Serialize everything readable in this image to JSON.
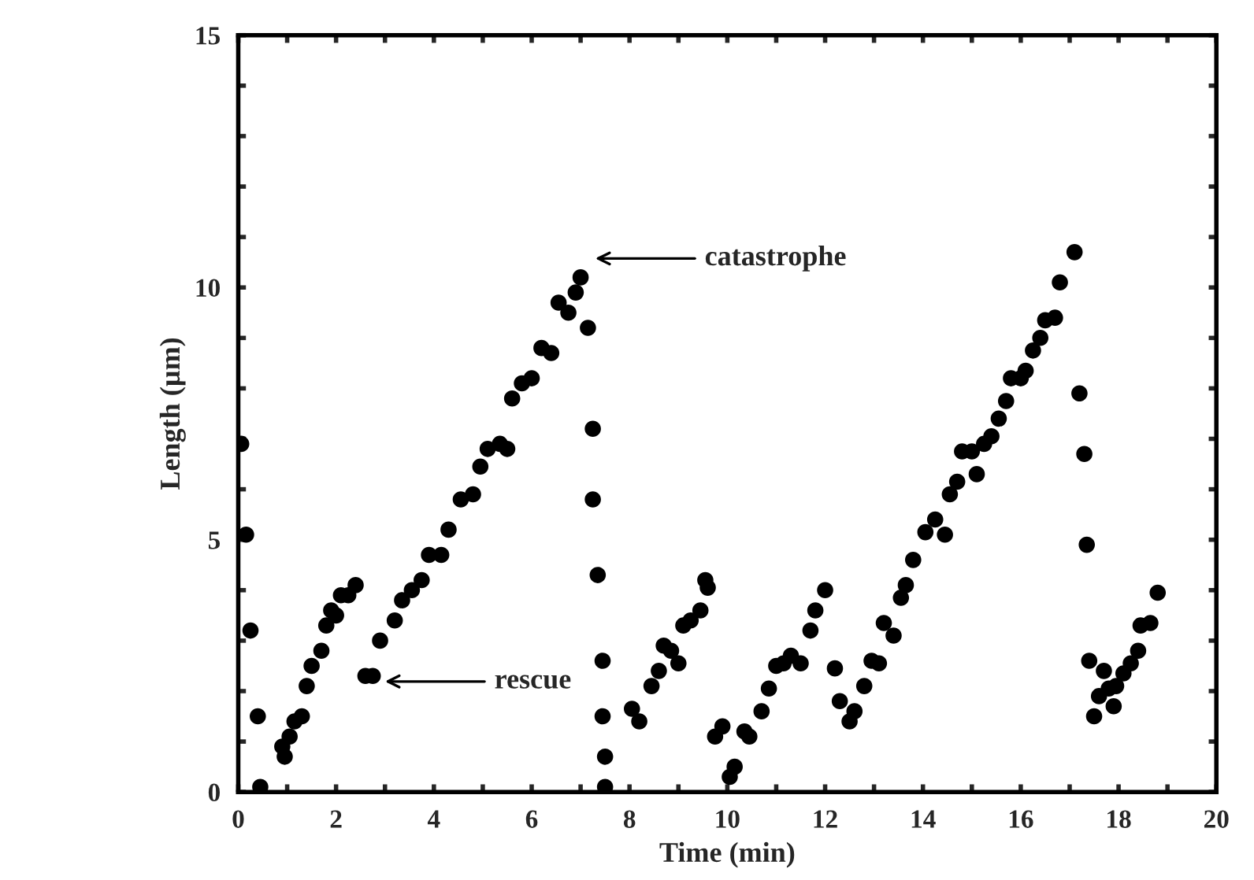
{
  "chart_data": {
    "type": "scatter",
    "xlabel": "Time (min)",
    "ylabel": "Length (µm)",
    "xlim": [
      0,
      20
    ],
    "ylim": [
      0,
      15
    ],
    "xticks": [
      0,
      {
        "value": 1,
        "label": null
      },
      2,
      {
        "value": 3,
        "label": null
      },
      4,
      {
        "value": 5,
        "label": null
      },
      6,
      {
        "value": 7,
        "label": null
      },
      8,
      {
        "value": 9,
        "label": null
      },
      10,
      {
        "value": 11,
        "label": null
      },
      12,
      {
        "value": 13,
        "label": null
      },
      14,
      {
        "value": 15,
        "label": null
      },
      16,
      {
        "value": 17,
        "label": null
      },
      18,
      {
        "value": 19,
        "label": null
      },
      20
    ],
    "yticks": [
      0,
      {
        "value": 1,
        "label": null
      },
      {
        "value": 2,
        "label": null
      },
      {
        "value": 3,
        "label": null
      },
      {
        "value": 4,
        "label": null
      },
      5,
      {
        "value": 6,
        "label": null
      },
      {
        "value": 7,
        "label": null
      },
      {
        "value": 8,
        "label": null
      },
      {
        "value": 9,
        "label": null
      },
      10,
      {
        "value": 11,
        "label": null
      },
      {
        "value": 12,
        "label": null
      },
      {
        "value": 13,
        "label": null
      },
      {
        "value": 14,
        "label": null
      },
      15
    ],
    "marker": "circle",
    "grid": false,
    "legend": false,
    "series": [
      {
        "color": "#000000",
        "x": [
          0.06,
          0.16,
          0.25,
          0.4,
          0.45,
          0.9,
          0.95,
          1.05,
          1.15,
          1.3,
          1.4,
          1.5,
          1.7,
          1.8,
          1.9,
          2.0,
          2.1,
          2.25,
          2.4,
          2.6,
          2.75,
          2.9,
          3.2,
          3.35,
          3.55,
          3.75,
          3.9,
          4.15,
          4.3,
          4.55,
          4.8,
          4.95,
          5.1,
          5.35,
          5.5,
          5.6,
          5.8,
          6.0,
          6.2,
          6.4,
          6.55,
          6.75,
          6.9,
          7.0,
          7.15,
          7.25,
          7.25,
          7.35,
          7.45,
          7.45,
          7.5,
          7.5,
          8.05,
          8.2,
          8.45,
          8.6,
          8.7,
          8.85,
          9.0,
          9.1,
          9.25,
          9.45,
          9.55,
          9.6,
          9.75,
          9.9,
          10.05,
          10.15,
          10.35,
          10.45,
          10.7,
          10.85,
          11.0,
          11.15,
          11.3,
          11.5,
          11.7,
          11.8,
          12.0,
          12.2,
          12.3,
          12.5,
          12.6,
          12.8,
          12.95,
          13.1,
          13.2,
          13.4,
          13.55,
          13.65,
          13.8,
          14.05,
          14.25,
          14.45,
          14.55,
          14.7,
          14.8,
          15.0,
          15.1,
          15.25,
          15.4,
          15.55,
          15.7,
          15.8,
          16.0,
          16.1,
          16.25,
          16.4,
          16.5,
          16.7,
          16.8,
          17.1,
          17.2,
          17.3,
          17.35,
          17.4,
          17.5,
          17.6,
          17.7,
          17.8,
          17.9,
          17.95,
          18.1,
          18.25,
          18.4,
          18.45,
          18.65,
          18.8
        ],
        "values": [
          6.9,
          5.1,
          3.2,
          1.5,
          0.1,
          0.9,
          0.7,
          1.1,
          1.4,
          1.5,
          2.1,
          2.5,
          2.8,
          3.3,
          3.6,
          3.5,
          3.9,
          3.9,
          4.1,
          2.3,
          2.3,
          3.0,
          3.4,
          3.8,
          4.0,
          4.2,
          4.7,
          4.7,
          5.2,
          5.8,
          5.9,
          6.45,
          6.8,
          6.9,
          6.8,
          7.8,
          8.1,
          8.2,
          8.8,
          8.7,
          9.7,
          9.5,
          9.9,
          10.2,
          9.2,
          7.2,
          5.8,
          4.3,
          2.6,
          1.5,
          0.7,
          0.1,
          1.65,
          1.4,
          2.1,
          2.4,
          2.9,
          2.8,
          2.55,
          3.3,
          3.4,
          3.6,
          4.2,
          4.05,
          1.1,
          1.3,
          0.3,
          0.5,
          1.2,
          1.1,
          1.6,
          2.05,
          2.5,
          2.55,
          2.7,
          2.55,
          3.2,
          3.6,
          4.0,
          2.45,
          1.8,
          1.4,
          1.6,
          2.1,
          2.6,
          2.55,
          3.35,
          3.1,
          3.85,
          4.1,
          4.6,
          5.15,
          5.4,
          5.1,
          5.9,
          6.15,
          6.75,
          6.75,
          6.3,
          6.9,
          7.05,
          7.4,
          7.75,
          8.2,
          8.2,
          8.35,
          8.75,
          9.0,
          9.35,
          9.4,
          10.1,
          10.7,
          7.9,
          6.7,
          4.9,
          2.6,
          1.5,
          1.9,
          2.4,
          2.05,
          1.7,
          2.1,
          2.35,
          2.55,
          2.8,
          3.3,
          3.35,
          3.95
        ]
      }
    ],
    "annotations": [
      "catastrophe",
      "rescue"
    ]
  }
}
